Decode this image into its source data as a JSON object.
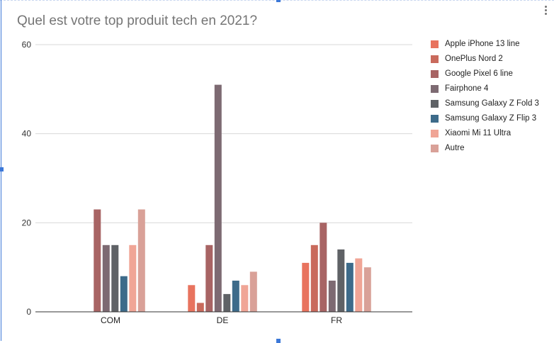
{
  "chart_data": {
    "type": "bar",
    "title": "Quel est votre top produit tech en 2021?",
    "categories": [
      "COM",
      "DE",
      "FR"
    ],
    "ylim": [
      0,
      60
    ],
    "yticks": [
      0,
      20,
      40,
      60
    ],
    "grid": true,
    "legend_position": "right",
    "series": [
      {
        "name": "Apple iPhone 13 line",
        "color": "#e8735e",
        "values": [
          0,
          6,
          11
        ]
      },
      {
        "name": "OnePlus Nord 2",
        "color": "#c96a5c",
        "values": [
          0,
          2,
          15
        ]
      },
      {
        "name": "Google Pixel 6 line",
        "color": "#a86464",
        "values": [
          23,
          15,
          20
        ]
      },
      {
        "name": "Fairphone 4",
        "color": "#7d6a72",
        "values": [
          15,
          51,
          7
        ]
      },
      {
        "name": "Samsung Galaxy Z Fold 3",
        "color": "#5f6266",
        "values": [
          15,
          4,
          14
        ]
      },
      {
        "name": "Samsung Galaxy Z Flip 3",
        "color": "#3d6b8a",
        "values": [
          8,
          7,
          11
        ]
      },
      {
        "name": "Xiaomi Mi 11 Ultra",
        "color": "#f0a596",
        "values": [
          15,
          6,
          12
        ]
      },
      {
        "name": "Autre",
        "color": "#d9a198",
        "values": [
          23,
          9,
          10
        ]
      }
    ]
  }
}
